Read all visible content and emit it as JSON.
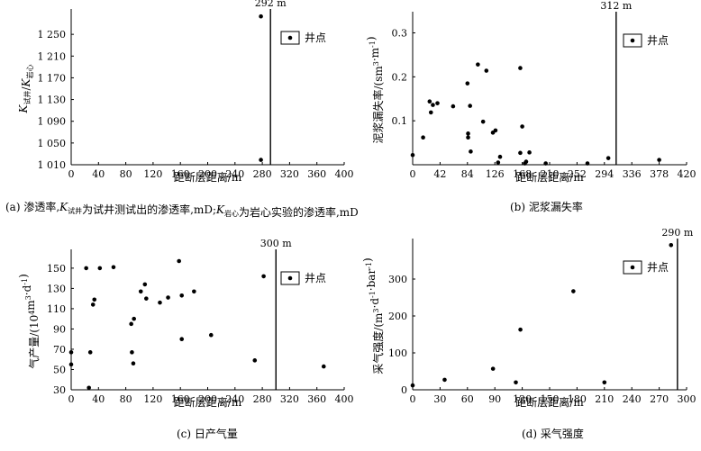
{
  "chart_data": [
    {
      "id": "a",
      "type": "scatter",
      "caption_prefix": "(a) 渗透率,",
      "caption_parts": [
        {
          "text": "K",
          "style": "italic"
        },
        {
          "text": "试井",
          "style": "sub"
        },
        {
          "text": "为试井测试出的渗透率,mD;"
        },
        {
          "text": "K",
          "style": "italic"
        },
        {
          "text": "岩心",
          "style": "sub"
        },
        {
          "text": "为岩心实验的渗透率,mD"
        }
      ],
      "xlabel": "距断层距离/m",
      "ylabel_parts": [
        {
          "text": "K",
          "style": "italic"
        },
        {
          "text": "试井",
          "style": "sub"
        },
        {
          "text": "/"
        },
        {
          "text": "K",
          "style": "italic"
        },
        {
          "text": "岩心",
          "style": "sub"
        }
      ],
      "xlim": [
        0,
        400
      ],
      "ylim": [
        1010,
        1290
      ],
      "xticks": [
        0,
        40,
        80,
        120,
        160,
        200,
        240,
        280,
        320,
        360,
        400
      ],
      "yticks": [
        1010,
        1050,
        1090,
        1130,
        1170,
        1210,
        1250
      ],
      "ytick_labels": [
        "1 010",
        "1 050",
        "1 090",
        "1 130",
        "1 170",
        "1 210",
        "1 250"
      ],
      "legend_label": "井点",
      "legend_position": "top-right",
      "vline": {
        "x": 292,
        "label": "292 m"
      },
      "points": [
        [
          278,
          1283
        ],
        [
          278,
          1019
        ]
      ]
    },
    {
      "id": "b",
      "type": "scatter",
      "caption": "(b) 泥浆漏失率",
      "xlabel": "距断层距离/m",
      "ylabel_parts": [
        {
          "text": "泥浆漏失率/(sm"
        },
        {
          "text": "3",
          "style": "sup"
        },
        {
          "text": "·m"
        },
        {
          "text": "-1",
          "style": "sup"
        },
        {
          "text": ")"
        }
      ],
      "xlim": [
        0,
        420
      ],
      "ylim": [
        0,
        0.34
      ],
      "xticks": [
        0,
        42,
        84,
        126,
        168,
        210,
        252,
        294,
        336,
        378,
        420
      ],
      "yticks": [
        0.1,
        0.2,
        0.3
      ],
      "ytick_labels": [
        "0.1",
        "0.2",
        "0.3"
      ],
      "legend_label": "井点",
      "legend_position": "top-right",
      "vline": {
        "x": 312,
        "label": "312 m"
      },
      "points": [
        [
          0,
          0.022
        ],
        [
          16,
          0.062
        ],
        [
          26,
          0.144
        ],
        [
          28,
          0.119
        ],
        [
          31,
          0.136
        ],
        [
          38,
          0.14
        ],
        [
          62,
          0.133
        ],
        [
          84,
          0.185
        ],
        [
          85,
          0.071
        ],
        [
          85,
          0.062
        ],
        [
          88,
          0.134
        ],
        [
          89,
          0.03
        ],
        [
          100,
          0.228
        ],
        [
          108,
          0.098
        ],
        [
          113,
          0.214
        ],
        [
          123,
          0.073
        ],
        [
          127,
          0.078
        ],
        [
          131,
          0.005
        ],
        [
          134,
          0.018
        ],
        [
          165,
          0.22
        ],
        [
          165,
          0.027
        ],
        [
          168,
          0.087
        ],
        [
          172,
          0.003
        ],
        [
          174,
          0.007
        ],
        [
          179,
          0.028
        ],
        [
          204,
          0.003
        ],
        [
          268,
          0.003
        ],
        [
          300,
          0.015
        ],
        [
          378,
          0.011
        ]
      ]
    },
    {
      "id": "c",
      "type": "scatter",
      "caption": "(c) 日产气量",
      "xlabel": "距断层距离/m",
      "ylabel_parts": [
        {
          "text": "气产量/(10"
        },
        {
          "text": "4",
          "style": "sup"
        },
        {
          "text": "m"
        },
        {
          "text": "3",
          "style": "sup"
        },
        {
          "text": "·d"
        },
        {
          "text": "-1",
          "style": "sup"
        },
        {
          "text": ")"
        }
      ],
      "xlim": [
        0,
        400
      ],
      "ylim": [
        30,
        165
      ],
      "xticks": [
        0,
        40,
        80,
        120,
        160,
        200,
        240,
        280,
        320,
        360,
        400
      ],
      "yticks": [
        30,
        50,
        70,
        90,
        110,
        130,
        150
      ],
      "ytick_labels": [
        "30",
        "50",
        "70",
        "90",
        "110",
        "130",
        "150"
      ],
      "legend_label": "井点",
      "legend_position": "top-right",
      "vline": {
        "x": 300,
        "label": "300 m"
      },
      "points": [
        [
          0,
          67
        ],
        [
          0,
          55
        ],
        [
          22,
          150
        ],
        [
          26,
          32
        ],
        [
          28,
          67
        ],
        [
          32,
          114
        ],
        [
          34,
          119
        ],
        [
          42,
          150
        ],
        [
          62,
          151
        ],
        [
          88,
          95
        ],
        [
          89,
          67
        ],
        [
          91,
          56
        ],
        [
          92,
          100
        ],
        [
          102,
          127
        ],
        [
          108,
          134
        ],
        [
          110,
          120
        ],
        [
          130,
          116
        ],
        [
          142,
          121
        ],
        [
          158,
          157
        ],
        [
          162,
          123
        ],
        [
          162,
          80
        ],
        [
          180,
          127
        ],
        [
          205,
          84
        ],
        [
          269,
          59
        ],
        [
          282,
          142
        ],
        [
          370,
          53
        ]
      ]
    },
    {
      "id": "d",
      "type": "scatter",
      "caption": "(d) 采气强度",
      "xlabel": "距断层距离/m",
      "ylabel_parts": [
        {
          "text": "采气强度/(m"
        },
        {
          "text": "3",
          "style": "sup"
        },
        {
          "text": "·d"
        },
        {
          "text": "-1",
          "style": "sup"
        },
        {
          "text": "·bar"
        },
        {
          "text": "-1",
          "style": "sup"
        },
        {
          "text": ")"
        }
      ],
      "xlim": [
        0,
        300
      ],
      "ylim": [
        0,
        400
      ],
      "xticks": [
        0,
        30,
        60,
        90,
        120,
        150,
        180,
        210,
        240,
        270,
        300
      ],
      "yticks": [
        0,
        100,
        200,
        300
      ],
      "ytick_labels": [
        "0",
        "100",
        "200",
        "300"
      ],
      "legend_label": "井点",
      "legend_position": "top-right",
      "vline": {
        "x": 290,
        "label": "290 m"
      },
      "points": [
        [
          0,
          12
        ],
        [
          35,
          27
        ],
        [
          88,
          57
        ],
        [
          113,
          20
        ],
        [
          118,
          163
        ],
        [
          176,
          267
        ],
        [
          210,
          20
        ],
        [
          283,
          392
        ]
      ]
    }
  ]
}
